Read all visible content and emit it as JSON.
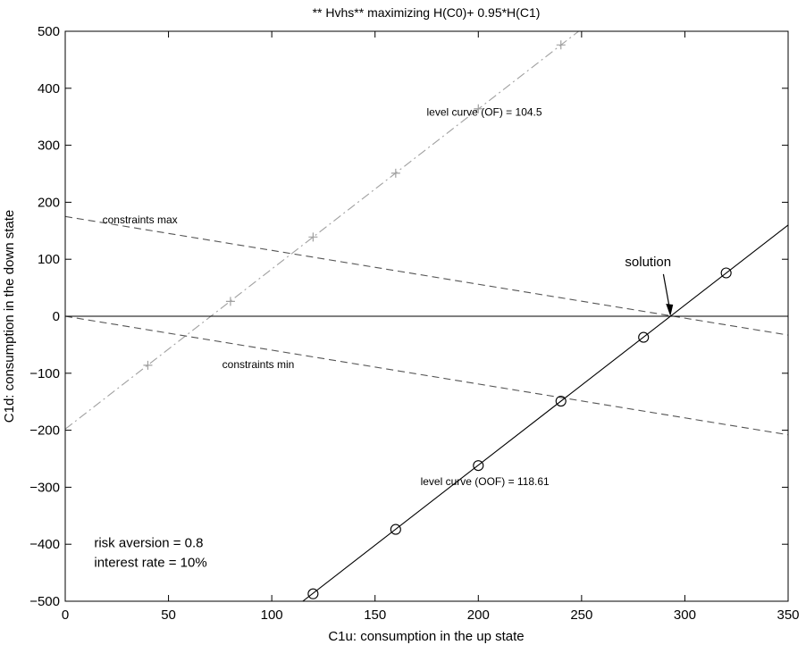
{
  "chart_data": {
    "type": "line",
    "title": "** Hvhs** maximizing H(C0)+ 0.95*H(C1)",
    "xlabel": "C1u: consumption in the up state",
    "ylabel": "C1d: consumption in the down state",
    "xlim": [
      0,
      350
    ],
    "ylim": [
      -500,
      500
    ],
    "xticks": [
      0,
      50,
      100,
      150,
      200,
      250,
      300,
      350
    ],
    "yticks": [
      -500,
      -400,
      -300,
      -200,
      -100,
      0,
      100,
      200,
      300,
      400,
      500
    ],
    "xtick_labels": [
      "0",
      "50",
      "100",
      "150",
      "200",
      "250",
      "300",
      "350"
    ],
    "ytick_labels": [
      "−500",
      "−400",
      "−300",
      "−200",
      "−100",
      "0",
      "100",
      "200",
      "300",
      "400",
      "500"
    ],
    "grid": false,
    "series": [
      {
        "style": "dash-dot",
        "color": "#a0a0a0",
        "marker": "plus",
        "line": [
          [
            0,
            -198
          ],
          [
            250,
            504
          ]
        ],
        "points": [
          [
            40,
            -86
          ],
          [
            80,
            26
          ],
          [
            120,
            139
          ],
          [
            160,
            251
          ],
          [
            200,
            364
          ],
          [
            240,
            476
          ]
        ]
      },
      {
        "style": "solid",
        "color": "#000000",
        "marker": "circle",
        "line": [
          [
            115,
            -500
          ],
          [
            350,
            160
          ]
        ],
        "points": [
          [
            120,
            -487
          ],
          [
            160,
            -374
          ],
          [
            200,
            -262
          ],
          [
            240,
            -149
          ],
          [
            280,
            -37
          ],
          [
            320,
            76
          ]
        ]
      },
      {
        "style": "dashed",
        "color": "#555555",
        "line": [
          [
            0,
            175
          ],
          [
            350,
            -33
          ]
        ]
      },
      {
        "style": "dashed",
        "color": "#555555",
        "line": [
          [
            0,
            0
          ],
          [
            350,
            -208
          ]
        ]
      },
      {
        "style": "solid",
        "color": "#000000",
        "line": [
          [
            0,
            0
          ],
          [
            350,
            0
          ]
        ]
      }
    ],
    "annotations": {
      "level_of": {
        "text": "level curve (OF) = 104.5",
        "x": 175,
        "y": 352
      },
      "level_oof": {
        "text": "level curve (OOF) = 118.61",
        "x": 172,
        "y": -296
      },
      "constraints_max": {
        "text": "constraints max",
        "x": 18,
        "y": 163
      },
      "constraints_min": {
        "text": "constraints min",
        "x": 76,
        "y": -91
      },
      "solution": {
        "text": "solution",
        "x": 271,
        "y": 88,
        "arrow_to": [
          293,
          0
        ]
      }
    },
    "notes": {
      "risk_aversion": "risk aversion = 0.8",
      "interest_rate": "interest rate = 10%",
      "x": 14,
      "y1": -405,
      "y2": -440
    }
  }
}
